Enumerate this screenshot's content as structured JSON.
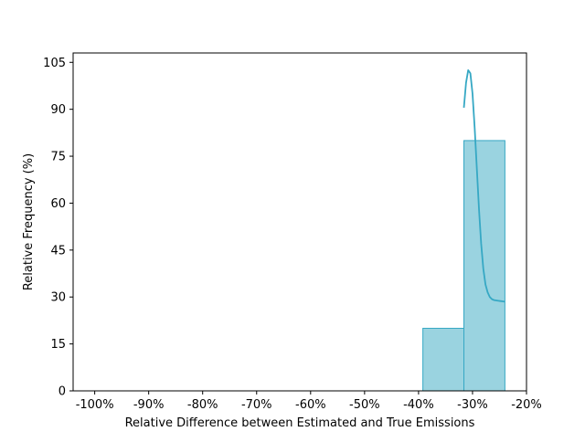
{
  "chart_data": {
    "type": "bar",
    "title": "",
    "xlabel": "Relative Difference between Estimated and True Emissions",
    "ylabel": "Relative Frequency (%)",
    "xlim": [
      -104,
      -20
    ],
    "ylim": [
      0,
      108
    ],
    "x_ticks": [
      -100,
      -90,
      -80,
      -70,
      -60,
      -50,
      -40,
      -30,
      -20
    ],
    "x_tick_labels": [
      "-100%",
      "-90%",
      "-80%",
      "-70%",
      "-60%",
      "-50%",
      "-40%",
      "-30%",
      "-20%"
    ],
    "y_ticks": [
      0,
      15,
      30,
      45,
      60,
      75,
      90,
      105
    ],
    "y_tick_labels": [
      "0",
      "15",
      "30",
      "45",
      "60",
      "75",
      "90",
      "105"
    ],
    "grid": false,
    "bins": [
      {
        "x0": -100,
        "x1": -39.2,
        "value": 0
      },
      {
        "x0": -39.2,
        "x1": -31.6,
        "value": 20
      },
      {
        "x0": -31.6,
        "x1": -24.0,
        "value": 80
      }
    ],
    "kde": {
      "name": "density",
      "x": [
        -31.6,
        -31.2,
        -30.8,
        -30.4,
        -30.0,
        -29.6,
        -29.2,
        -28.8,
        -28.4,
        -28.0,
        -27.6,
        -27.2,
        -26.8,
        -26.4,
        -26.0,
        -25.6,
        -25.2,
        -24.8,
        -24.4,
        -24.0
      ],
      "y": [
        90.5,
        98.5,
        102.5,
        101.5,
        95.0,
        84.0,
        71.0,
        58.0,
        47.0,
        39.0,
        34.0,
        31.5,
        30.0,
        29.3,
        29.0,
        28.9,
        28.8,
        28.7,
        28.6,
        28.5
      ]
    },
    "colors": {
      "bar_fill": "#9ad3e0",
      "bar_edge": "#36a8c4",
      "kde_line": "#36a8c4",
      "axis": "#000000"
    }
  }
}
